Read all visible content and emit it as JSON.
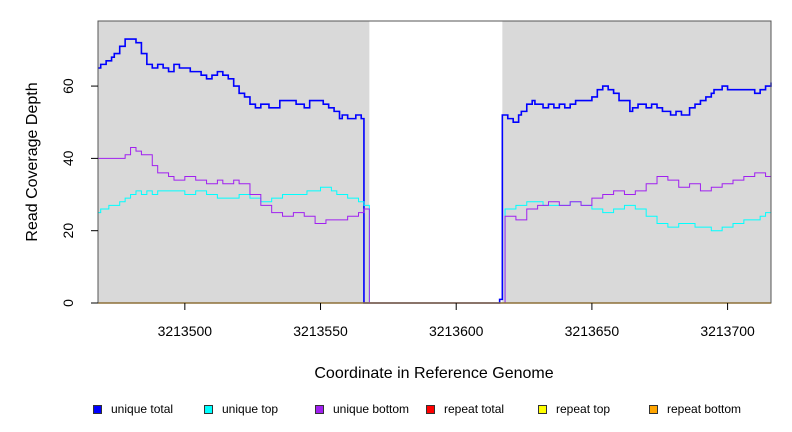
{
  "chart_data": {
    "type": "line",
    "step": true,
    "xlabel": "Coordinate in Reference Genome",
    "ylabel": "Read Coverage Depth",
    "xlim": [
      3213468,
      3213716
    ],
    "ylim": [
      0,
      78
    ],
    "x_ticks": [
      3213500,
      3213550,
      3213600,
      3213650,
      3213700
    ],
    "x_tick_labels": [
      "3213500",
      "3213550",
      "3213600",
      "3213650",
      "3213700"
    ],
    "y_ticks": [
      0,
      20,
      40,
      60
    ],
    "y_tick_labels": [
      "0",
      "20",
      "40",
      "60"
    ],
    "background": "#d9d9d9",
    "gap_region": [
      3213568,
      3213617
    ],
    "gap_color": "#ffffff",
    "legend_position": "bottom",
    "legend": [
      {
        "label": "unique total",
        "color": "#0000ff"
      },
      {
        "label": "unique top",
        "color": "#00ffff"
      },
      {
        "label": "unique bottom",
        "color": "#a020f0"
      },
      {
        "label": "repeat total",
        "color": "#ff0000"
      },
      {
        "label": "repeat top",
        "color": "#ffff00"
      },
      {
        "label": "repeat bottom",
        "color": "#ffa500"
      }
    ],
    "series": [
      {
        "name": "unique total",
        "color": "#0000ff",
        "line_width": 1.6,
        "x": [
          3213468,
          3213469,
          3213471,
          3213473,
          3213474,
          3213476,
          3213478,
          3213482,
          3213484,
          3213486,
          3213488,
          3213490,
          3213492,
          3213494,
          3213496,
          3213498,
          3213502,
          3213506,
          3213508,
          3213510,
          3213512,
          3213514,
          3213516,
          3213518,
          3213520,
          3213522,
          3213524,
          3213526,
          3213528,
          3213531,
          3213533,
          3213535,
          3213541,
          3213544,
          3213546,
          3213551,
          3213553,
          3213555,
          3213557,
          3213558,
          3213560,
          3213563,
          3213565,
          3213566,
          3213568,
          3213616,
          3213617,
          3213619,
          3213621,
          3213623,
          3213624,
          3213626,
          3213628,
          3213629,
          3213632,
          3213634,
          3213636,
          3213638,
          3213640,
          3213642,
          3213644,
          3213650,
          3213652,
          3213654,
          3213656,
          3213658,
          3213660,
          3213664,
          3213665,
          3213667,
          3213670,
          3213672,
          3213674,
          3213676,
          3213679,
          3213681,
          3213683,
          3213686,
          3213688,
          3213690,
          3213692,
          3213694,
          3213695,
          3213698,
          3213700,
          3213702,
          3213710,
          3213712,
          3213714,
          3213716
        ],
        "y": [
          65,
          66,
          67,
          68,
          69,
          71,
          73,
          72,
          69,
          66,
          65,
          66,
          65,
          64,
          66,
          65,
          64,
          63,
          62,
          63,
          64,
          63,
          62,
          60,
          58,
          57,
          55,
          54,
          55,
          54,
          54,
          56,
          55,
          54,
          56,
          55,
          54,
          53,
          51,
          52,
          51,
          52,
          51,
          0,
          0,
          1,
          52,
          51,
          50,
          52,
          53,
          55,
          56,
          55,
          54,
          55,
          54,
          55,
          54,
          55,
          56,
          57,
          59,
          60,
          59,
          58,
          56,
          53,
          54,
          55,
          54,
          55,
          54,
          53,
          52,
          53,
          52,
          54,
          55,
          56,
          57,
          58,
          59,
          60,
          59,
          59,
          58,
          59,
          60,
          61
        ]
      },
      {
        "name": "unique top",
        "color": "#00ffff",
        "line_width": 1,
        "x": [
          3213468,
          3213469,
          3213472,
          3213476,
          3213478,
          3213480,
          3213482,
          3213484,
          3213486,
          3213488,
          3213490,
          3213496,
          3213500,
          3213504,
          3213508,
          3213512,
          3213516,
          3213520,
          3213524,
          3213528,
          3213532,
          3213536,
          3213540,
          3213545,
          3213550,
          3213554,
          3213556,
          3213560,
          3213564,
          3213566,
          3213568,
          3213616,
          3213618,
          3213622,
          3213626,
          3213632,
          3213638,
          3213642,
          3213646,
          3213650,
          3213654,
          3213658,
          3213662,
          3213666,
          3213670,
          3213674,
          3213678,
          3213682,
          3213688,
          3213694,
          3213698,
          3213702,
          3213706,
          3213712,
          3213714,
          3213716
        ],
        "y": [
          25,
          26,
          27,
          28,
          29,
          30,
          31,
          30,
          31,
          30,
          31,
          31,
          30,
          31,
          30,
          29,
          29,
          30,
          29,
          28,
          29,
          30,
          30,
          31,
          32,
          31,
          30,
          29,
          28,
          27,
          0,
          0,
          26,
          27,
          28,
          27,
          27,
          28,
          27,
          26,
          25,
          26,
          27,
          26,
          24,
          22,
          21,
          22,
          21,
          20,
          21,
          22,
          23,
          24,
          25,
          26
        ]
      },
      {
        "name": "unique bottom",
        "color": "#a020f0",
        "line_width": 1,
        "x": [
          3213468,
          3213470,
          3213474,
          3213478,
          3213480,
          3213482,
          3213484,
          3213488,
          3213490,
          3213494,
          3213496,
          3213500,
          3213504,
          3213508,
          3213512,
          3213514,
          3213518,
          3213520,
          3213524,
          3213528,
          3213532,
          3213536,
          3213540,
          3213544,
          3213548,
          3213552,
          3213556,
          3213560,
          3213564,
          3213566,
          3213568,
          3213616,
          3213618,
          3213622,
          3213626,
          3213630,
          3213634,
          3213638,
          3213642,
          3213646,
          3213650,
          3213654,
          3213658,
          3213662,
          3213666,
          3213670,
          3213674,
          3213678,
          3213682,
          3213686,
          3213690,
          3213694,
          3213698,
          3213702,
          3213706,
          3213710,
          3213714,
          3213716
        ],
        "y": [
          40,
          40,
          40,
          41,
          43,
          42,
          41,
          38,
          36,
          35,
          34,
          35,
          34,
          33,
          34,
          33,
          34,
          33,
          30,
          27,
          25,
          24,
          25,
          24,
          22,
          23,
          23,
          24,
          25,
          26,
          0,
          0,
          24,
          23,
          26,
          27,
          28,
          27,
          28,
          27,
          29,
          30,
          31,
          30,
          31,
          33,
          35,
          34,
          32,
          33,
          31,
          32,
          33,
          34,
          35,
          36,
          35,
          35
        ]
      },
      {
        "name": "repeat total",
        "color": "#ff0000",
        "line_width": 1,
        "x": [
          3213468,
          3213716
        ],
        "y": [
          0,
          0
        ]
      },
      {
        "name": "repeat top",
        "color": "#ffff00",
        "line_width": 1,
        "x": [
          3213468,
          3213716
        ],
        "y": [
          0,
          0
        ]
      },
      {
        "name": "repeat bottom",
        "color": "#ffa500",
        "line_width": 1.4,
        "x": [
          3213468,
          3213716
        ],
        "y": [
          0,
          0
        ]
      }
    ]
  }
}
